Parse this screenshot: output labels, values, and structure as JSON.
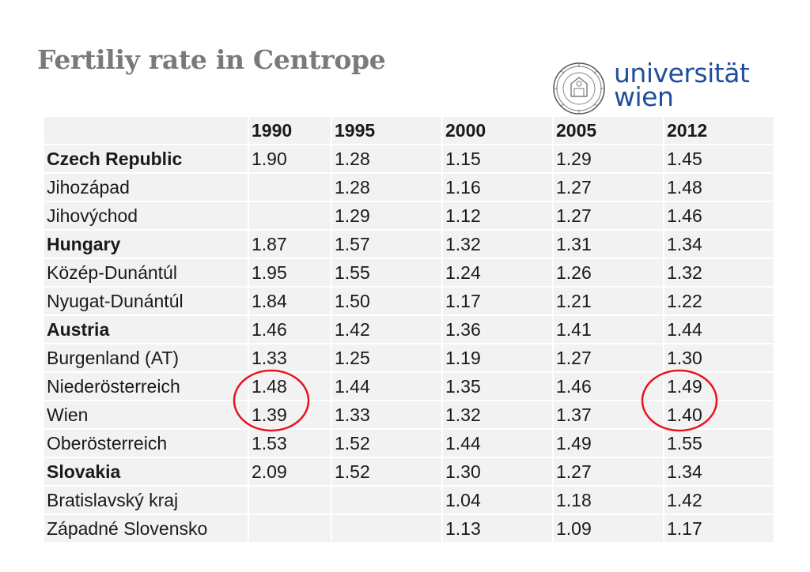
{
  "title": "Fertiliy rate in Centrope",
  "logo": {
    "line1": "universität",
    "line2": "wien"
  },
  "table": {
    "headers": [
      "",
      "1990",
      "1995",
      "2000",
      "2005",
      "2012"
    ],
    "rows": [
      {
        "region": "Czech Republic",
        "bold": true,
        "values": [
          "1.90",
          "1.28",
          "1.15",
          "1.29",
          "1.45"
        ]
      },
      {
        "region": "Jihozápad",
        "bold": false,
        "values": [
          "",
          "1.28",
          "1.16",
          "1.27",
          "1.48"
        ]
      },
      {
        "region": "Jihovýchod",
        "bold": false,
        "values": [
          "",
          "1.29",
          "1.12",
          "1.27",
          "1.46"
        ]
      },
      {
        "region": "Hungary",
        "bold": true,
        "values": [
          "1.87",
          "1.57",
          "1.32",
          "1.31",
          "1.34"
        ]
      },
      {
        "region": "Közép-Dunántúl",
        "bold": false,
        "values": [
          "1.95",
          "1.55",
          "1.24",
          "1.26",
          "1.32"
        ]
      },
      {
        "region": "Nyugat-Dunántúl",
        "bold": false,
        "values": [
          "1.84",
          "1.50",
          "1.17",
          "1.21",
          "1.22"
        ]
      },
      {
        "region": "Austria",
        "bold": true,
        "values": [
          "1.46",
          "1.42",
          "1.36",
          "1.41",
          "1.44"
        ]
      },
      {
        "region": "Burgenland (AT)",
        "bold": false,
        "values": [
          "1.33",
          "1.25",
          "1.19",
          "1.27",
          "1.30"
        ]
      },
      {
        "region": "Niederösterreich",
        "bold": false,
        "values": [
          "1.48",
          "1.44",
          "1.35",
          "1.46",
          "1.49"
        ]
      },
      {
        "region": "Wien",
        "bold": false,
        "values": [
          "1.39",
          "1.33",
          "1.32",
          "1.37",
          "1.40"
        ]
      },
      {
        "region": "Oberösterreich",
        "bold": false,
        "values": [
          "1.53",
          "1.52",
          "1.44",
          "1.49",
          "1.55"
        ]
      },
      {
        "region": "Slovakia",
        "bold": true,
        "values": [
          "2.09",
          "1.52",
          "1.30",
          "1.27",
          "1.34"
        ]
      },
      {
        "region": "Bratislavský kraj",
        "bold": false,
        "values": [
          "",
          "",
          "1.04",
          "1.18",
          "1.42"
        ]
      },
      {
        "region": "Západné Slovensko",
        "bold": false,
        "values": [
          "",
          "",
          "1.13",
          "1.09",
          "1.17"
        ]
      }
    ]
  },
  "highlight_color": "#e8131c"
}
